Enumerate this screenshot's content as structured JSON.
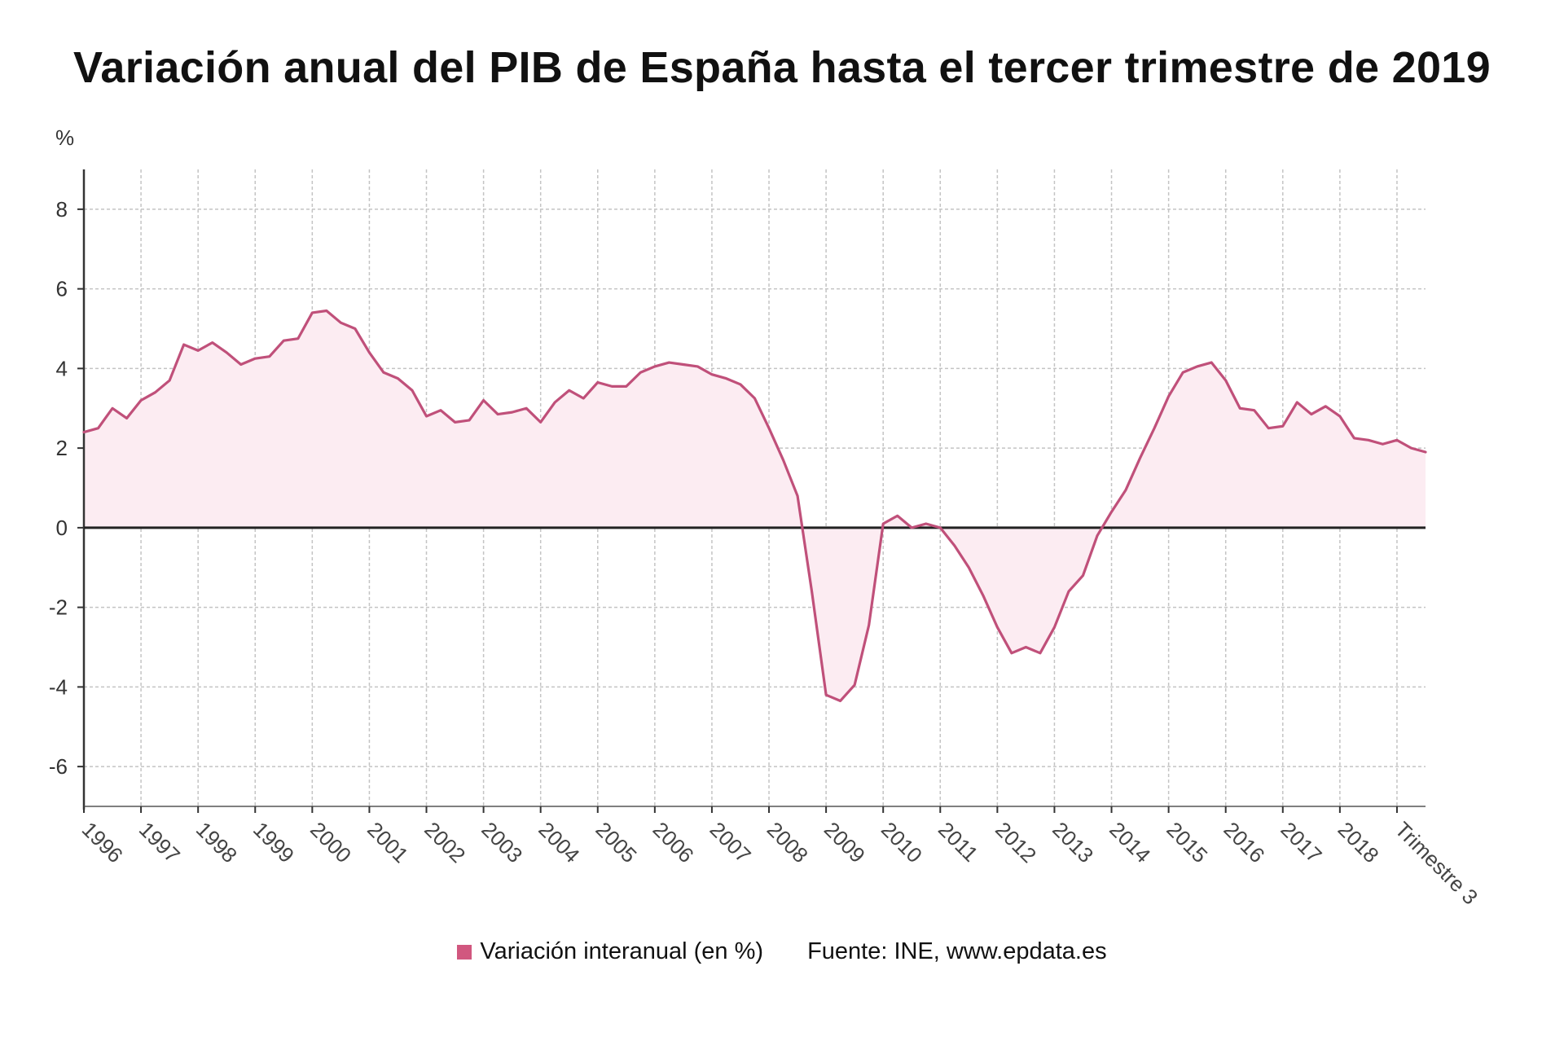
{
  "title": "Variación anual del PIB de España hasta el tercer trimestre de 2019",
  "legend": {
    "series_label": "Variación interanual (en %)",
    "source": "Fuente: INE, www.epdata.es"
  },
  "colors": {
    "series": "#c0507a",
    "fill": "#fcecf2",
    "zero_line": "#222222"
  },
  "chart_data": {
    "type": "area",
    "title": "Variación anual del PIB de España hasta el tercer trimestre de 2019",
    "ylabel": "%",
    "xlabel": "",
    "ylim": [
      -7,
      9
    ],
    "yticks": [
      -6,
      -4,
      -2,
      0,
      2,
      4,
      6,
      8
    ],
    "grid": true,
    "legend_position": "bottom",
    "x_tick_labels": [
      "1996",
      "1997",
      "1998",
      "1999",
      "2000",
      "2001",
      "2002",
      "2003",
      "2004",
      "2005",
      "2006",
      "2007",
      "2008",
      "2009",
      "2010",
      "2011",
      "2012",
      "2013",
      "2014",
      "2015",
      "2016",
      "2017",
      "2018",
      "Trimestre 3"
    ],
    "x": [
      "1996 T1",
      "1996 T2",
      "1996 T3",
      "1996 T4",
      "1997 T1",
      "1997 T2",
      "1997 T3",
      "1997 T4",
      "1998 T1",
      "1998 T2",
      "1998 T3",
      "1998 T4",
      "1999 T1",
      "1999 T2",
      "1999 T3",
      "1999 T4",
      "2000 T1",
      "2000 T2",
      "2000 T3",
      "2000 T4",
      "2001 T1",
      "2001 T2",
      "2001 T3",
      "2001 T4",
      "2002 T1",
      "2002 T2",
      "2002 T3",
      "2002 T4",
      "2003 T1",
      "2003 T2",
      "2003 T3",
      "2003 T4",
      "2004 T1",
      "2004 T2",
      "2004 T3",
      "2004 T4",
      "2005 T1",
      "2005 T2",
      "2005 T3",
      "2005 T4",
      "2006 T1",
      "2006 T2",
      "2006 T3",
      "2006 T4",
      "2007 T1",
      "2007 T2",
      "2007 T3",
      "2007 T4",
      "2008 T1",
      "2008 T2",
      "2008 T3",
      "2008 T4",
      "2009 T1",
      "2009 T2",
      "2009 T3",
      "2009 T4",
      "2010 T1",
      "2010 T2",
      "2010 T3",
      "2010 T4",
      "2011 T1",
      "2011 T2",
      "2011 T3",
      "2011 T4",
      "2012 T1",
      "2012 T2",
      "2012 T3",
      "2012 T4",
      "2013 T1",
      "2013 T2",
      "2013 T3",
      "2013 T4",
      "2014 T1",
      "2014 T2",
      "2014 T3",
      "2014 T4",
      "2015 T1",
      "2015 T2",
      "2015 T3",
      "2015 T4",
      "2016 T1",
      "2016 T2",
      "2016 T3",
      "2016 T4",
      "2017 T1",
      "2017 T2",
      "2017 T3",
      "2017 T4",
      "2018 T1",
      "2018 T2",
      "2018 T3",
      "2018 T4",
      "2019 T1",
      "2019 T2",
      "2019 T3"
    ],
    "series": [
      {
        "name": "Variación interanual (en %)",
        "values": [
          2.4,
          2.5,
          3.0,
          2.75,
          3.2,
          3.4,
          3.7,
          4.6,
          4.45,
          4.65,
          4.4,
          4.1,
          4.25,
          4.3,
          4.7,
          4.75,
          5.4,
          5.45,
          5.15,
          5.0,
          4.4,
          3.9,
          3.75,
          3.45,
          2.8,
          2.95,
          2.65,
          2.7,
          3.2,
          2.85,
          2.9,
          3.0,
          2.65,
          3.15,
          3.45,
          3.25,
          3.65,
          3.55,
          3.55,
          3.9,
          4.05,
          4.15,
          4.1,
          4.05,
          3.85,
          3.75,
          3.6,
          3.25,
          2.5,
          1.7,
          0.8,
          -1.6,
          -4.2,
          -4.35,
          -3.95,
          -2.45,
          0.1,
          0.3,
          0.0,
          0.1,
          0.0,
          -0.45,
          -1.0,
          -1.7,
          -2.5,
          -3.15,
          -3.0,
          -3.15,
          -2.5,
          -1.6,
          -1.2,
          -0.2,
          0.4,
          0.95,
          1.75,
          2.5,
          3.3,
          3.9,
          4.05,
          4.15,
          3.7,
          3.0,
          2.95,
          2.5,
          2.55,
          3.15,
          2.85,
          3.05,
          2.8,
          2.25,
          2.2,
          2.1,
          2.2,
          2.0,
          1.9
        ]
      }
    ]
  }
}
